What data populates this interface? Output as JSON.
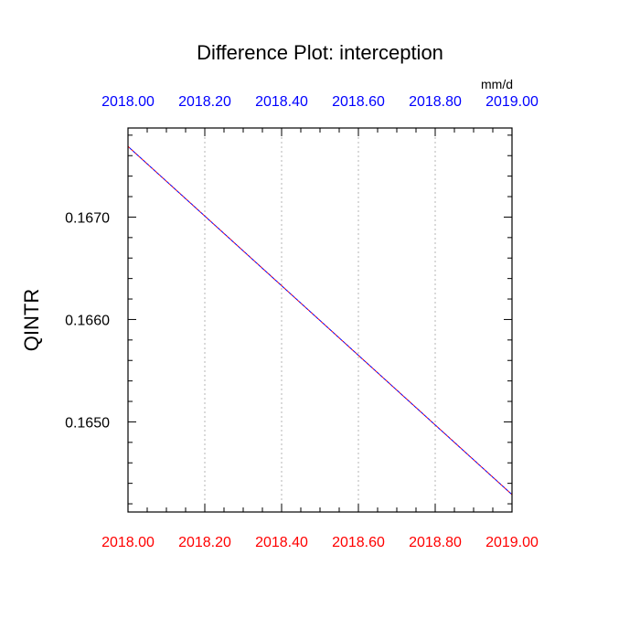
{
  "chart_data": {
    "type": "line",
    "title": "Difference Plot: interception",
    "units": "mm/d",
    "ylabel": "QINTR",
    "xlabel": "",
    "xlim": [
      2018.0,
      2019.0
    ],
    "ylim": [
      0.16412,
      0.16787
    ],
    "x_ticks": [
      "2018.00",
      "2018.20",
      "2018.40",
      "2018.60",
      "2018.80",
      "2019.00"
    ],
    "x_tick_values": [
      2018.0,
      2018.2,
      2018.4,
      2018.6,
      2018.8,
      2019.0
    ],
    "y_ticks": [
      "0.1650",
      "0.1660",
      "0.1670"
    ],
    "y_tick_values": [
      0.165,
      0.166,
      0.167
    ],
    "x_grid": true,
    "y_grid": false,
    "series": [
      {
        "x": [
          2018.0,
          2019.0
        ],
        "values": [
          0.16769,
          0.16429
        ]
      }
    ],
    "colors": {
      "top_tick_labels": "#0000ff",
      "bottom_tick_labels": "#ff0000",
      "line_a": "#ff0000",
      "line_b": "#0000ff",
      "grid": "#b4b4b4",
      "axes": "#000000"
    }
  }
}
